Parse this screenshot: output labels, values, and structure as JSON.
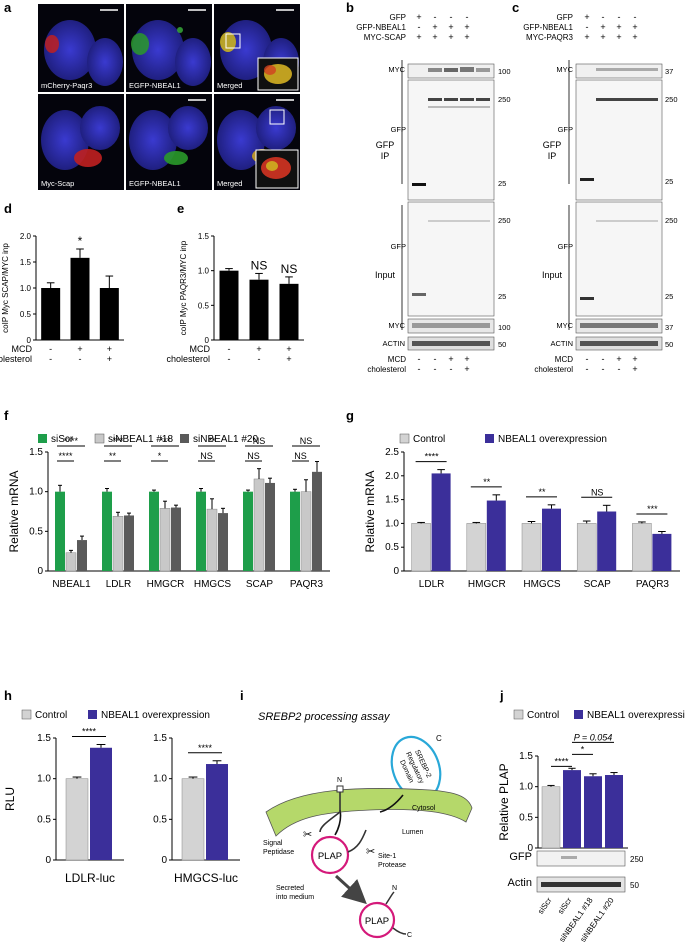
{
  "panel_letters": [
    "a",
    "b",
    "c",
    "d",
    "e",
    "f",
    "g",
    "h",
    "i",
    "j"
  ],
  "colors": {
    "green": "#1e9e4a",
    "light_gray": "#d3d3d3",
    "mid_gray": "#9a9a9a",
    "dark_gray": "#5a5a5a",
    "navy": "#3b2f9a",
    "magenta": "#d4197a",
    "cyan": "#29a8d8",
    "membrane": "#b5d86a",
    "black": "#111111"
  },
  "panel_a": {
    "top_labels": [
      "mCherry-Paqr3",
      "EGFP-NBEAL1",
      "Merged"
    ],
    "bottom_labels": [
      "Myc-Scap",
      "EGFP-NBEAL1",
      "Merged"
    ]
  },
  "panel_b": {
    "header_rows": [
      {
        "label": "GFP",
        "marks": [
          "+",
          "-",
          "-",
          "-"
        ]
      },
      {
        "label": "GFP-NBEAL1",
        "marks": [
          "-",
          "+",
          "+",
          "+"
        ]
      },
      {
        "label": "MYC-SCAP",
        "marks": [
          "+",
          "+",
          "+",
          "+"
        ]
      }
    ],
    "ip_label": [
      "GFP",
      "IP"
    ],
    "input_label": "Input",
    "blot_labels": {
      "myc": "MYC",
      "gfp": "GFP",
      "actin": "ACTIN"
    },
    "markers": {
      "m100": "100",
      "m250": "250",
      "m25": "25",
      "m50": "50"
    },
    "footer_rows": [
      {
        "label": "MCD",
        "marks": [
          "-",
          "-",
          "+",
          "+"
        ]
      },
      {
        "label": "cholesterol",
        "marks": [
          "-",
          "-",
          "-",
          "+"
        ]
      }
    ]
  },
  "panel_c": {
    "header_rows": [
      {
        "label": "GFP",
        "marks": [
          "+",
          "-",
          "-",
          "-"
        ]
      },
      {
        "label": "GFP-NBEAL1",
        "marks": [
          "-",
          "+",
          "+",
          "+"
        ]
      },
      {
        "label": "MYC-PAQR3",
        "marks": [
          "+",
          "+",
          "+",
          "+"
        ]
      }
    ],
    "ip_label": [
      "GFP",
      "IP"
    ],
    "input_label": "Input",
    "blot_labels": {
      "myc": "MYC",
      "gfp": "GFP",
      "actin": "ACTIN"
    },
    "markers": {
      "m37": "37",
      "m250": "250",
      "m25": "25",
      "m50": "50"
    },
    "footer_rows": [
      {
        "label": "MCD",
        "marks": [
          "-",
          "-",
          "+",
          "+"
        ]
      },
      {
        "label": "cholesterol",
        "marks": [
          "-",
          "-",
          "-",
          "+"
        ]
      }
    ]
  },
  "panel_i": {
    "title": "SREBP2 processing assay",
    "domain_text": [
      "SREBP-2",
      "Regulatory",
      "Domain"
    ],
    "c_label": "C",
    "n_label": "N",
    "cytosol": "Cytosol",
    "lumen": "Lumen",
    "signal_peptidase": [
      "Signal",
      "Peptidase"
    ],
    "site1": [
      "Site-1",
      "Protease"
    ],
    "secreted": [
      "Secreted",
      "into medium"
    ],
    "plap": "PLAP"
  },
  "panel_j_blot": {
    "gfp_label": "GFP",
    "actin_label": "Actin",
    "m250": "250",
    "m50": "50",
    "lane_labels": [
      "siScr",
      "siScr",
      "siNBEAL1 #18",
      "siNBEAL1 #20"
    ]
  },
  "chart_data": [
    {
      "id": "d",
      "type": "bar",
      "ylabel": "coIP Myc SCAP/MYC inp",
      "ylim": [
        0,
        2.0
      ],
      "yticks": [
        0,
        0.5,
        1.0,
        1.5,
        2.0
      ],
      "values": [
        1.0,
        1.58,
        1.0
      ],
      "errors": [
        0.1,
        0.17,
        0.23
      ],
      "significance": [
        "",
        "*",
        ""
      ],
      "row_labels": [
        "MCD",
        "cholesterol"
      ],
      "conditions": [
        [
          "-",
          "-"
        ],
        [
          "+",
          "-"
        ],
        [
          "+",
          "+"
        ]
      ]
    },
    {
      "id": "e",
      "type": "bar",
      "ylabel": "coIP Myc PAQR3/MYC inp",
      "ylim": [
        0,
        1.5
      ],
      "yticks": [
        0,
        0.5,
        1.0,
        1.5
      ],
      "values": [
        1.0,
        0.87,
        0.81
      ],
      "errors": [
        0.03,
        0.09,
        0.1
      ],
      "significance": [
        "",
        "NS",
        "NS"
      ],
      "row_labels": [
        "MCD",
        "cholesterol"
      ],
      "conditions": [
        [
          "-",
          "-"
        ],
        [
          "+",
          "-"
        ],
        [
          "+",
          "+"
        ]
      ]
    },
    {
      "id": "f",
      "type": "bar",
      "ylabel": "Relative mRNA",
      "ylim": [
        0,
        1.5
      ],
      "yticks": [
        0,
        0.5,
        1.0,
        1.5
      ],
      "categories": [
        "NBEAL1",
        "LDLR",
        "HMGCR",
        "HMGCS",
        "SCAP",
        "PAQR3"
      ],
      "series": [
        {
          "name": "siScr",
          "color": "#1e9e4a",
          "values": [
            1.0,
            1.0,
            1.0,
            1.0,
            1.0,
            1.0
          ],
          "errors": [
            0.08,
            0.04,
            0.02,
            0.04,
            0.02,
            0.03
          ]
        },
        {
          "name": "siNBEAL1 #18",
          "color": "#c8c8c8",
          "values": [
            0.23,
            0.69,
            0.79,
            0.78,
            1.16,
            1.0
          ],
          "errors": [
            0.03,
            0.05,
            0.09,
            0.13,
            0.13,
            0.15
          ]
        },
        {
          "name": "siNBEAL1 #20",
          "color": "#5a5a5a",
          "values": [
            0.39,
            0.7,
            0.8,
            0.73,
            1.11,
            1.25
          ],
          "errors": [
            0.05,
            0.03,
            0.03,
            0.06,
            0.06,
            0.13
          ]
        }
      ],
      "significance": [
        {
          "category": "NBEAL1",
          "pair": "siScr vs #20",
          "label": "****"
        },
        {
          "category": "NBEAL1",
          "pair": "siScr vs #18",
          "label": "****"
        },
        {
          "category": "LDLR",
          "pair": "siScr vs #20",
          "label": "***"
        },
        {
          "category": "LDLR",
          "pair": "siScr vs #18",
          "label": "**"
        },
        {
          "category": "HMGCR",
          "pair": "siScr vs #20",
          "label": "***"
        },
        {
          "category": "HMGCR",
          "pair": "siScr vs #18",
          "label": "*"
        },
        {
          "category": "HMGCS",
          "pair": "siScr vs #20",
          "label": "**"
        },
        {
          "category": "HMGCS",
          "pair": "siScr vs #18",
          "label": "NS"
        },
        {
          "category": "SCAP",
          "pair": "siScr vs #20",
          "label": "NS"
        },
        {
          "category": "SCAP",
          "pair": "siScr vs #18",
          "label": "NS"
        },
        {
          "category": "PAQR3",
          "pair": "siScr vs #20",
          "label": "NS"
        },
        {
          "category": "PAQR3",
          "pair": "siScr vs #18",
          "label": "NS"
        }
      ]
    },
    {
      "id": "g",
      "type": "bar",
      "ylabel": "Relative mRNA",
      "ylim": [
        0,
        2.5
      ],
      "yticks": [
        0,
        0.5,
        1.0,
        1.5,
        2.0,
        2.5
      ],
      "categories": [
        "LDLR",
        "HMGCR",
        "HMGCS",
        "SCAP",
        "PAQR3"
      ],
      "series": [
        {
          "name": "Control",
          "color": "#d3d3d3",
          "values": [
            1.0,
            1.0,
            1.0,
            1.0,
            1.0
          ],
          "errors": [
            0.02,
            0.02,
            0.04,
            0.05,
            0.03
          ]
        },
        {
          "name": "NBEAL1 overexpression",
          "color": "#3b2f9a",
          "values": [
            2.05,
            1.48,
            1.31,
            1.25,
            0.78
          ],
          "errors": [
            0.08,
            0.12,
            0.08,
            0.13,
            0.05
          ]
        }
      ],
      "significance": [
        "****",
        "**",
        "**",
        "NS",
        "***"
      ]
    },
    {
      "id": "h1",
      "type": "bar",
      "ylabel": "RLU",
      "xlabel": "LDLR-luc",
      "ylim": [
        0,
        1.5
      ],
      "yticks": [
        0,
        0.5,
        1.0,
        1.5
      ],
      "series": [
        {
          "name": "Control",
          "color": "#d3d3d3",
          "values": [
            1.0
          ],
          "errors": [
            0.02
          ]
        },
        {
          "name": "NBEAL1 overexpression",
          "color": "#3b2f9a",
          "values": [
            1.38
          ],
          "errors": [
            0.04
          ]
        }
      ],
      "significance": [
        "****"
      ]
    },
    {
      "id": "h2",
      "type": "bar",
      "xlabel": "HMGCS-luc",
      "ylim": [
        0,
        1.5
      ],
      "yticks": [
        0,
        0.5,
        1.0,
        1.5
      ],
      "series": [
        {
          "name": "Control",
          "color": "#d3d3d3",
          "values": [
            1.0
          ],
          "errors": [
            0.02
          ]
        },
        {
          "name": "NBEAL1 overexpression",
          "color": "#3b2f9a",
          "values": [
            1.18
          ],
          "errors": [
            0.04
          ]
        }
      ],
      "significance": [
        "****"
      ]
    },
    {
      "id": "j",
      "type": "bar",
      "ylabel": "Relative PLAP",
      "ylim": [
        0,
        1.5
      ],
      "yticks": [
        0,
        0.5,
        1.0,
        1.5
      ],
      "categories": [
        "siScr",
        "siScr",
        "siNBEAL1 #18",
        "siNBEAL1 #20"
      ],
      "colors": [
        "#d3d3d3",
        "#3b2f9a",
        "#3b2f9a",
        "#3b2f9a"
      ],
      "values": [
        1.0,
        1.27,
        1.17,
        1.19
      ],
      "errors": [
        0.02,
        0.03,
        0.04,
        0.04
      ],
      "significance": [
        {
          "pair": [
            0,
            1
          ],
          "label": "****"
        },
        {
          "pair": [
            1,
            2
          ],
          "label": "*"
        },
        {
          "pair": [
            1,
            3
          ],
          "label": "P = 0.054"
        }
      ]
    }
  ],
  "legends": {
    "f": [
      "siScr",
      "siNBEAL1 #18",
      "siNBEAL1 #20"
    ],
    "g": [
      "Control",
      "NBEAL1 overexpression"
    ],
    "h": [
      "Control",
      "NBEAL1 overexpression"
    ],
    "j": [
      "Control",
      "NBEAL1 overexpression"
    ]
  }
}
